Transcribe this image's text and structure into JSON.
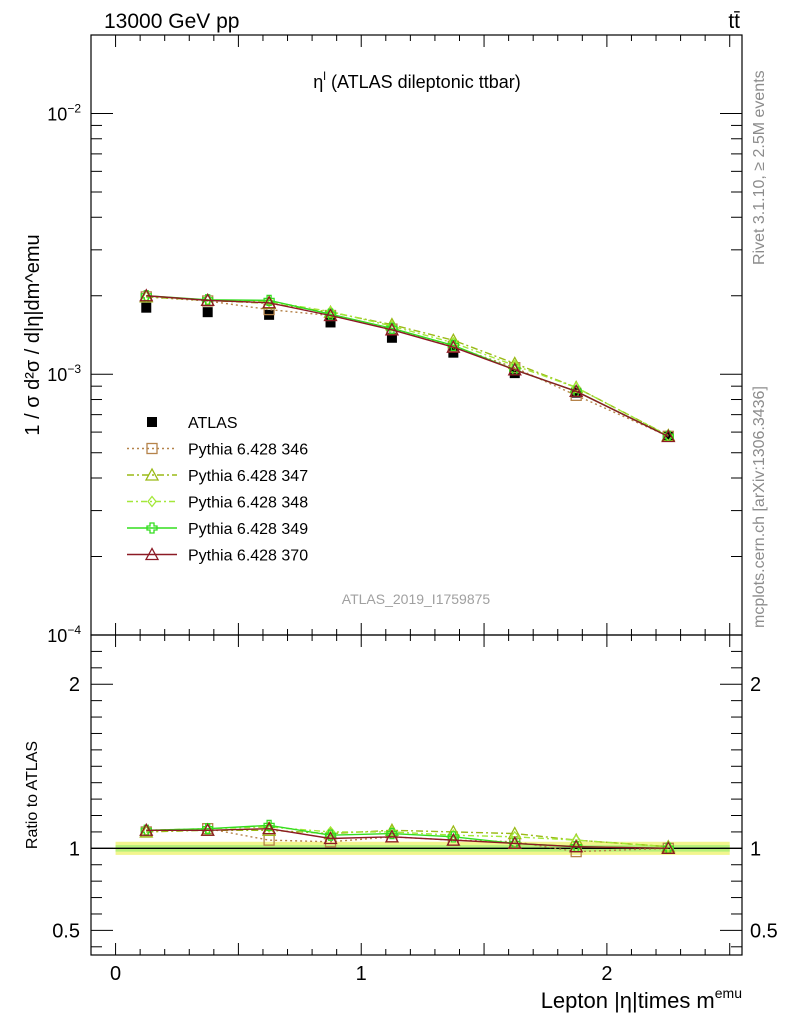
{
  "header": {
    "energy_label": "13000 GeV pp",
    "process_label": "tt̄"
  },
  "side_labels": {
    "rivet": "Rivet 3.1.10, ≥ 2.5M events",
    "mcplots": "mcplots.cern.ch [arXiv:1306.3436]"
  },
  "watermark": "ATLAS_2019_I1759875",
  "colors": {
    "atlas": "#000000",
    "p346": "#b5834a",
    "p347": "#9aba16",
    "p348": "#a4e83a",
    "p349": "#33dd1f",
    "p370": "#8c1a25",
    "band_outer": "#f2f58e",
    "band_inner": "#b6f07a"
  },
  "chart_data": [
    {
      "type": "line",
      "title": "η^l (ATLAS dileptonic ttbar)",
      "title_main": "η",
      "title_sup": "l",
      "title_rest": " (ATLAS dileptonic ttbar)",
      "ylabel": "1 / σ  d²σ / d|η|dm^emu",
      "y_scale": "log",
      "ylim": [
        0.0001,
        0.02
      ],
      "y_ticklabels": [
        {
          "value": 0.01,
          "base": "10",
          "exp": "−2"
        },
        {
          "value": 0.001,
          "base": "10",
          "exp": "−3"
        },
        {
          "value": 0.0001,
          "base": "10",
          "exp": "−4"
        }
      ],
      "xlim": [
        -0.1,
        2.55
      ],
      "x": [
        0.125,
        0.375,
        0.625,
        0.875,
        1.125,
        1.375,
        1.625,
        1.875,
        2.25
      ],
      "legend_position": "middle-left",
      "series": [
        {
          "name": "ATLAS",
          "style": "atlas",
          "values": [
            0.0018,
            0.00173,
            0.00169,
            0.00158,
            0.00138,
            0.00121,
            0.00101,
            0.00085,
            0.000575
          ]
        },
        {
          "name": "Pythia 6.428 346",
          "style": "p346",
          "values": [
            0.00198,
            0.00191,
            0.00177,
            0.00168,
            0.00149,
            0.00128,
            0.00106,
            0.00083,
            0.000578
          ]
        },
        {
          "name": "Pythia 6.428 347",
          "style": "p347",
          "values": [
            0.00198,
            0.00192,
            0.00187,
            0.00173,
            0.00155,
            0.00135,
            0.0011,
            0.00089,
            0.000582
          ]
        },
        {
          "name": "Pythia 6.428 348",
          "style": "p348",
          "values": [
            0.00199,
            0.00193,
            0.0019,
            0.00174,
            0.00153,
            0.00132,
            0.00108,
            0.00089,
            0.000581
          ]
        },
        {
          "name": "Pythia 6.428 349",
          "style": "p349",
          "values": [
            0.002,
            0.00193,
            0.00192,
            0.0017,
            0.0015,
            0.00129,
            0.00104,
            0.00086,
            0.000578
          ]
        },
        {
          "name": "Pythia 6.428 370",
          "style": "p370",
          "values": [
            0.002,
            0.00192,
            0.00188,
            0.00168,
            0.00148,
            0.00127,
            0.00104,
            0.00086,
            0.000577
          ]
        }
      ]
    },
    {
      "type": "line",
      "ylabel": "Ratio to ATLAS",
      "xlabel": "Lepton |η|times m^emu",
      "xlabel_main": "Lepton |η|times m",
      "xlabel_sup": "emu",
      "ylim": [
        0.35,
        2.3
      ],
      "y_ticklabels": [
        "0.5",
        "1",
        "2"
      ],
      "x_ticklabels": [
        "0",
        "1",
        "2"
      ],
      "reference": 1.0,
      "band": {
        "outer": 0.04,
        "inner": 0.02
      },
      "series": [
        {
          "name": "Pythia 6.428 346",
          "style": "p346",
          "values": [
            1.1,
            1.12,
            1.05,
            1.04,
            1.07,
            1.05,
            1.04,
            0.98,
            1.0
          ]
        },
        {
          "name": "Pythia 6.428 347",
          "style": "p347",
          "values": [
            1.1,
            1.11,
            1.11,
            1.09,
            1.11,
            1.1,
            1.09,
            1.05,
            1.01
          ]
        },
        {
          "name": "Pythia 6.428 348",
          "style": "p348",
          "values": [
            1.11,
            1.12,
            1.13,
            1.1,
            1.1,
            1.08,
            1.07,
            1.05,
            1.01
          ]
        },
        {
          "name": "Pythia 6.428 349",
          "style": "p349",
          "values": [
            1.11,
            1.12,
            1.14,
            1.08,
            1.09,
            1.07,
            1.03,
            1.01,
            1.0
          ]
        },
        {
          "name": "Pythia 6.428 370",
          "style": "p370",
          "values": [
            1.11,
            1.11,
            1.12,
            1.06,
            1.07,
            1.05,
            1.03,
            1.01,
            1.0
          ]
        }
      ]
    }
  ]
}
